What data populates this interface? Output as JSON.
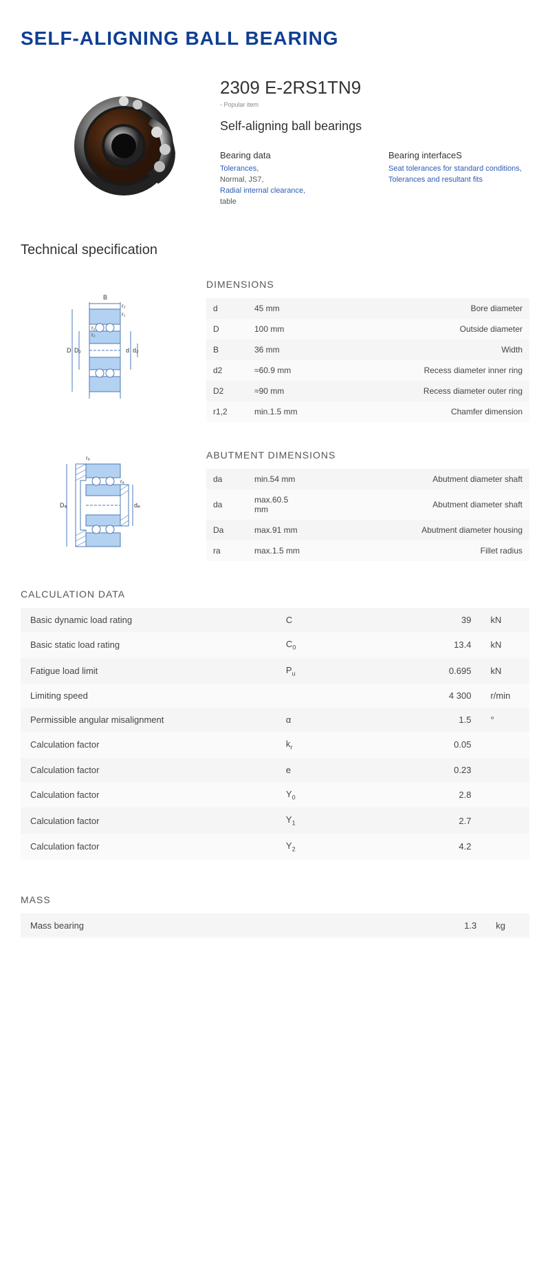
{
  "page": {
    "title": "SELF-ALIGNING BALL BEARING",
    "tech_spec_heading": "Technical specification"
  },
  "product": {
    "code": "2309 E-2RS1TN9",
    "popular_tag": "- Popular item",
    "subtitle": "Self-aligning ball bearings"
  },
  "link_cols": [
    {
      "title": "Bearing data",
      "items": [
        {
          "text": "Tolerances,",
          "link": true
        },
        {
          "text": "Normal, JS7,",
          "link": false
        },
        {
          "text": "Radial internal clearance,",
          "link": true
        },
        {
          "text": "table",
          "link": false
        }
      ]
    },
    {
      "title": "Bearing interfaceS",
      "items": [
        {
          "text": "Seat tolerances for standard conditions,",
          "link": true
        },
        {
          "text": "Tolerances and resultant fits",
          "link": true
        }
      ]
    }
  ],
  "dimensions": {
    "title": "DIMENSIONS",
    "rows": [
      {
        "sym": "d",
        "val": "45  mm",
        "desc": "Bore diameter"
      },
      {
        "sym": "D",
        "val": "100  mm",
        "desc": "Outside diameter"
      },
      {
        "sym": "B",
        "val": "36  mm",
        "desc": "Width"
      },
      {
        "sym": "d2",
        "val": "≈60.9 mm",
        "desc": "Recess diameter inner ring"
      },
      {
        "sym": "D2",
        "val": "≈90 mm",
        "desc": "Recess diameter outer ring"
      },
      {
        "sym": "r1,2",
        "val": "min.1.5 mm",
        "desc": "Chamfer dimension"
      }
    ]
  },
  "abutment": {
    "title": "ABUTMENT DIMENSIONS",
    "rows": [
      {
        "sym": "da",
        "val": "min.54 mm",
        "desc": "Abutment diameter shaft"
      },
      {
        "sym": "da",
        "val": "max.60.5 mm",
        "desc": "Abutment diameter shaft"
      },
      {
        "sym": "Da",
        "val": "max.91 mm",
        "desc": "Abutment diameter housing"
      },
      {
        "sym": "ra",
        "val": "max.1.5 mm",
        "desc": "Fillet radius"
      }
    ]
  },
  "calculation": {
    "title": "CALCULATION DATA",
    "rows": [
      {
        "name": "Basic dynamic load rating",
        "sym": "C",
        "sub": "",
        "val": "39",
        "unit": "kN"
      },
      {
        "name": "Basic static load rating",
        "sym": "C",
        "sub": "0",
        "val": "13.4",
        "unit": "kN"
      },
      {
        "name": "Fatigue load limit",
        "sym": "P",
        "sub": "u",
        "val": "0.695",
        "unit": "kN"
      },
      {
        "name": "Limiting speed",
        "sym": "",
        "sub": "",
        "val": "4 300",
        "unit": "r/min"
      },
      {
        "name": "Permissible angular misalignment",
        "sym": "α",
        "sub": "",
        "val": "1.5",
        "unit": "°"
      },
      {
        "name": "Calculation factor",
        "sym": "k",
        "sub": "r",
        "val": "0.05",
        "unit": ""
      },
      {
        "name": "Calculation factor",
        "sym": "e",
        "sub": "",
        "val": "0.23",
        "unit": ""
      },
      {
        "name": "Calculation factor",
        "sym": "Y",
        "sub": "0",
        "val": "2.8",
        "unit": ""
      },
      {
        "name": "Calculation factor",
        "sym": "Y",
        "sub": "1",
        "val": "2.7",
        "unit": ""
      },
      {
        "name": "Calculation factor",
        "sym": "Y",
        "sub": "2",
        "val": "4.2",
        "unit": ""
      }
    ]
  },
  "mass": {
    "title": "MASS",
    "rows": [
      {
        "name": "Mass bearing",
        "sym": "",
        "sub": "",
        "val": "1.3",
        "unit": "kg"
      }
    ]
  },
  "colors": {
    "title": "#0f3f93",
    "link": "#2d5bb8",
    "row_odd": "#f5f5f5",
    "row_even": "#fafafa",
    "diagram_fill": "#b3d1f0",
    "diagram_stroke": "#4a7ab8"
  }
}
